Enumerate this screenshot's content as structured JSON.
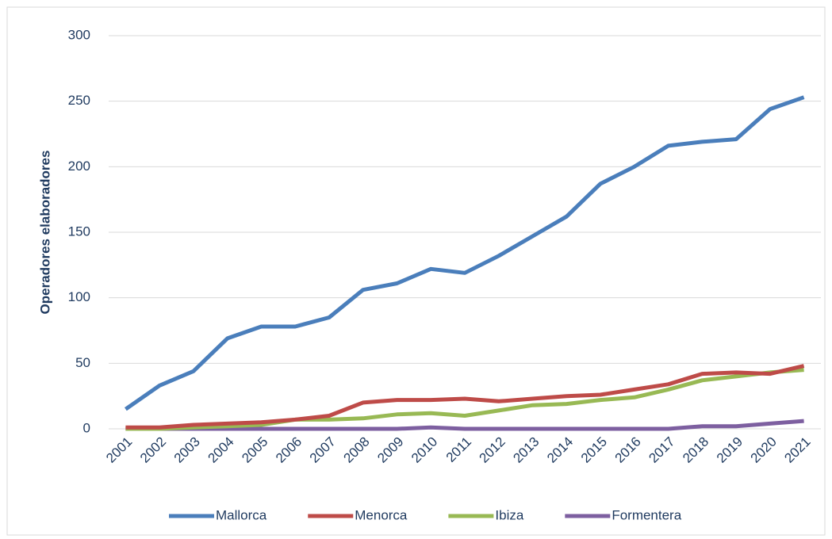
{
  "chart_data": {
    "type": "line",
    "y_label": "Operadores elaboradores",
    "categories": [
      "2001",
      "2002",
      "2003",
      "2004",
      "2005",
      "2006",
      "2007",
      "2008",
      "2009",
      "2010",
      "2011",
      "2012",
      "2013",
      "2014",
      "2015",
      "2016",
      "2017",
      "2018",
      "2019",
      "2020",
      "2021"
    ],
    "series": [
      {
        "name": "Mallorca",
        "color": "#4a7ebb",
        "values": [
          15,
          33,
          44,
          69,
          78,
          78,
          85,
          106,
          111,
          122,
          119,
          132,
          147,
          162,
          187,
          200,
          216,
          219,
          221,
          244,
          253
        ]
      },
      {
        "name": "Menorca",
        "color": "#be4b48",
        "values": [
          1,
          1,
          3,
          4,
          5,
          7,
          10,
          20,
          22,
          22,
          23,
          21,
          23,
          25,
          26,
          30,
          34,
          42,
          43,
          42,
          48
        ]
      },
      {
        "name": "Ibiza",
        "color": "#98b954",
        "values": [
          0,
          0,
          1,
          2,
          3,
          7,
          7,
          8,
          11,
          12,
          10,
          14,
          18,
          19,
          22,
          24,
          30,
          37,
          40,
          43,
          45
        ]
      },
      {
        "name": "Formentera",
        "color": "#7d5fa0",
        "values": [
          0,
          0,
          0,
          0,
          0,
          0,
          0,
          0,
          0,
          1,
          0,
          0,
          0,
          0,
          0,
          0,
          0,
          2,
          2,
          4,
          6
        ]
      }
    ],
    "ylim": [
      0,
      300
    ],
    "yticks": [
      0,
      50,
      100,
      150,
      200,
      250,
      300
    ],
    "grid": true,
    "legend": "bottom"
  }
}
